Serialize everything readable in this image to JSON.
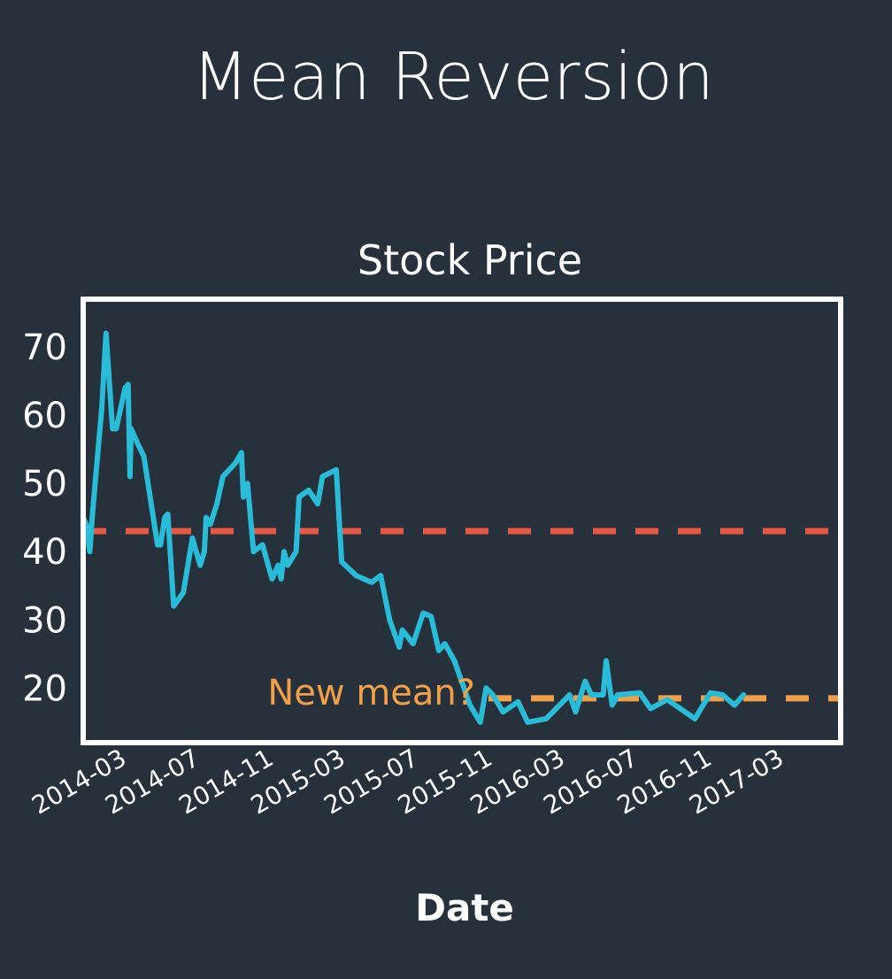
{
  "page_title": "Mean Reversion",
  "colors": {
    "background": "#27313b",
    "price_line": "#29bcd9",
    "old_mean": "#e55846",
    "new_mean": "#f2a048",
    "text": "#ffffff",
    "frame": "#ffffff"
  },
  "chart_data": {
    "type": "line",
    "title": "Stock Price",
    "xlabel": "Date",
    "ylabel": "",
    "xlim": [
      "2013-12-25",
      "2017-06-10"
    ],
    "ylim": [
      12,
      77
    ],
    "x_tick_labels": [
      "2014-03",
      "2014-07",
      "2014-11",
      "2015-03",
      "2015-07",
      "2015-11",
      "2016-03",
      "2016-07",
      "2016-11",
      "2017-03"
    ],
    "y_ticks": [
      20,
      30,
      40,
      50,
      60,
      70
    ],
    "grid": false,
    "legend": "none",
    "series": [
      {
        "color": "#29bcd9",
        "points": [
          [
            "2013-12-25",
            45
          ],
          [
            "2013-12-30",
            44
          ],
          [
            "2014-01-05",
            40
          ],
          [
            "2014-01-10",
            46
          ],
          [
            "2014-01-25",
            61
          ],
          [
            "2014-02-01",
            72
          ],
          [
            "2014-02-12",
            58
          ],
          [
            "2014-02-18",
            58
          ],
          [
            "2014-03-05",
            64
          ],
          [
            "2014-03-10",
            64.5
          ],
          [
            "2014-03-13",
            51
          ],
          [
            "2014-03-15",
            58
          ],
          [
            "2014-03-25",
            56
          ],
          [
            "2014-04-05",
            54
          ],
          [
            "2014-04-28",
            41
          ],
          [
            "2014-05-03",
            41
          ],
          [
            "2014-05-10",
            45
          ],
          [
            "2014-05-15",
            45.5
          ],
          [
            "2014-05-25",
            32
          ],
          [
            "2014-06-10",
            34
          ],
          [
            "2014-06-25",
            42
          ],
          [
            "2014-07-08",
            38
          ],
          [
            "2014-07-15",
            40
          ],
          [
            "2014-07-18",
            45
          ],
          [
            "2014-07-25",
            44
          ],
          [
            "2014-08-05",
            47
          ],
          [
            "2014-08-15",
            51
          ],
          [
            "2014-09-05",
            53
          ],
          [
            "2014-09-15",
            54.5
          ],
          [
            "2014-09-18",
            48
          ],
          [
            "2014-09-25",
            50
          ],
          [
            "2014-10-05",
            40
          ],
          [
            "2014-10-20",
            41
          ],
          [
            "2014-11-05",
            36
          ],
          [
            "2014-11-15",
            38
          ],
          [
            "2014-11-20",
            36
          ],
          [
            "2014-11-25",
            40
          ],
          [
            "2014-12-01",
            38
          ],
          [
            "2014-12-15",
            40
          ],
          [
            "2014-12-20",
            48
          ],
          [
            "2015-01-05",
            49
          ],
          [
            "2015-01-20",
            47
          ],
          [
            "2015-01-28",
            51
          ],
          [
            "2015-02-20",
            52
          ],
          [
            "2015-03-01",
            38.5
          ],
          [
            "2015-03-25",
            36.5
          ],
          [
            "2015-04-20",
            35.5
          ],
          [
            "2015-05-05",
            36.5
          ],
          [
            "2015-05-20",
            30
          ],
          [
            "2015-06-05",
            26
          ],
          [
            "2015-06-10",
            28.5
          ],
          [
            "2015-06-28",
            26.5
          ],
          [
            "2015-07-15",
            31
          ],
          [
            "2015-07-28",
            30.5
          ],
          [
            "2015-08-10",
            25.5
          ],
          [
            "2015-08-20",
            26.5
          ],
          [
            "2015-09-05",
            24
          ],
          [
            "2015-10-01",
            17.5
          ],
          [
            "2015-10-18",
            15
          ],
          [
            "2015-10-28",
            20
          ],
          [
            "2015-11-08",
            19
          ],
          [
            "2015-11-25",
            16.5
          ],
          [
            "2015-12-20",
            18
          ],
          [
            "2016-01-05",
            15
          ],
          [
            "2016-02-05",
            15.5
          ],
          [
            "2016-03-15",
            19
          ],
          [
            "2016-03-25",
            16.5
          ],
          [
            "2016-04-10",
            21
          ],
          [
            "2016-04-20",
            19
          ],
          [
            "2016-05-10",
            19
          ],
          [
            "2016-05-15",
            24
          ],
          [
            "2016-05-25",
            17.5
          ],
          [
            "2016-06-03",
            19
          ],
          [
            "2016-07-10",
            19.3
          ],
          [
            "2016-07-28",
            17
          ],
          [
            "2016-08-25",
            18.3
          ],
          [
            "2016-10-10",
            15.5
          ],
          [
            "2016-11-05",
            19.3
          ],
          [
            "2016-11-25",
            19
          ],
          [
            "2016-12-15",
            17.5
          ],
          [
            "2016-12-30",
            19
          ]
        ]
      }
    ],
    "reference_lines": [
      {
        "y": 43,
        "style": "dashed",
        "color": "#e55846"
      },
      {
        "y": 18.5,
        "style": "dashed",
        "color": "#f2a048",
        "label": "New mean?"
      }
    ]
  }
}
